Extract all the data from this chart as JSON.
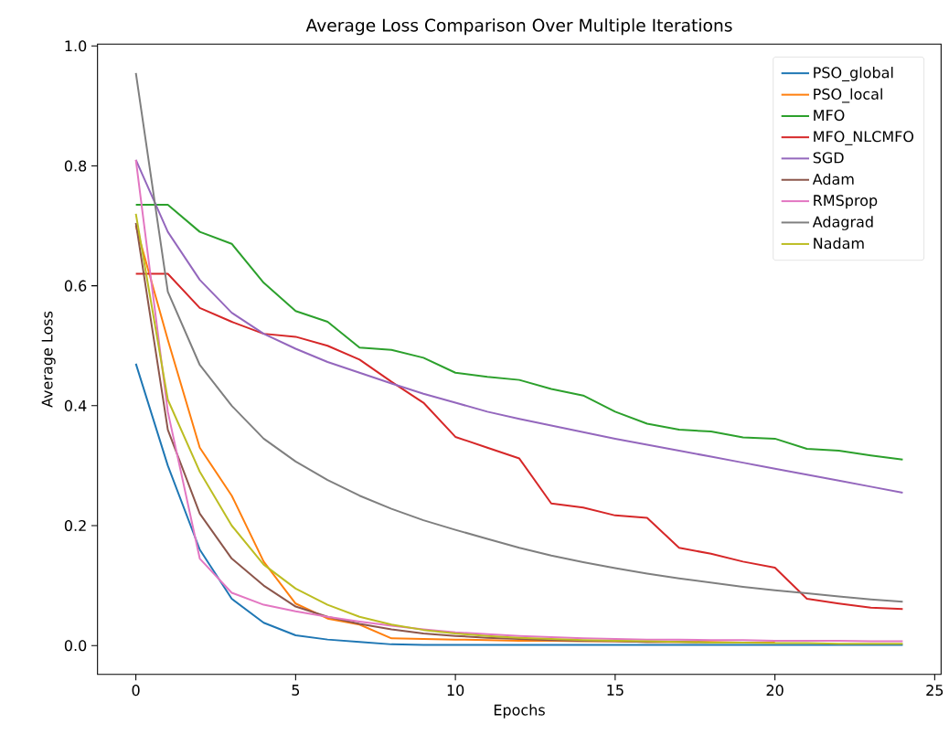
{
  "chart_data": {
    "type": "line",
    "title": "Average Loss Comparison Over Multiple Iterations",
    "xlabel": "Epochs",
    "ylabel": "Average Loss",
    "x": [
      0,
      1,
      2,
      3,
      4,
      5,
      6,
      7,
      8,
      9,
      10,
      11,
      12,
      13,
      14,
      15,
      16,
      17,
      18,
      19,
      20,
      21,
      22,
      23,
      24
    ],
    "xlim": [
      -1.2,
      25.2
    ],
    "ylim": [
      -0.048,
      1.003
    ],
    "xticks": [
      0,
      5,
      10,
      15,
      20,
      25
    ],
    "yticks": [
      {
        "value": 0,
        "label": "0.0"
      },
      0.2,
      0.4,
      0.6,
      0.8,
      {
        "value": 1,
        "label": "1.0"
      }
    ],
    "legend": "top right",
    "grid": false,
    "marker": "none",
    "line_style": "solid",
    "series": [
      {
        "name": "PSO_global",
        "color": "#1f77b4",
        "values": [
          0.47,
          0.3,
          0.16,
          0.078,
          0.038,
          0.017,
          0.01,
          0.006,
          0.002,
          0.001,
          0.001,
          0.001,
          0.001,
          0.001,
          0.001,
          0.001,
          0.001,
          0.001,
          0.001,
          0.001,
          0.001,
          0.001,
          0.001,
          0.001,
          0.001
        ]
      },
      {
        "name": "PSO_local",
        "color": "#ff7f0e",
        "values": [
          0.7,
          0.51,
          0.33,
          0.25,
          0.14,
          0.07,
          0.045,
          0.035,
          0.012,
          0.011,
          0.01,
          0.009,
          0.008,
          0.008,
          0.007,
          0.007,
          0.006,
          0.006,
          0.006,
          0.005,
          0.005,
          null,
          null,
          null,
          null
        ]
      },
      {
        "name": "MFO",
        "color": "#2ca02c",
        "values": [
          0.735,
          0.735,
          0.69,
          0.67,
          0.605,
          0.558,
          0.54,
          0.497,
          0.493,
          0.48,
          0.455,
          0.448,
          0.443,
          0.428,
          0.417,
          0.39,
          0.37,
          0.36,
          0.357,
          0.347,
          0.345,
          0.328,
          0.325,
          0.317,
          0.31
        ]
      },
      {
        "name": "MFO_NLCMFO",
        "color": "#d62728",
        "values": [
          0.62,
          0.62,
          0.563,
          0.54,
          0.52,
          0.515,
          0.5,
          0.477,
          0.44,
          0.405,
          0.348,
          0.33,
          0.312,
          0.237,
          0.23,
          0.217,
          0.213,
          0.163,
          0.153,
          0.14,
          0.13,
          0.078,
          0.07,
          0.063,
          0.061
        ]
      },
      {
        "name": "SGD",
        "color": "#9467bd",
        "values": [
          0.81,
          0.69,
          0.61,
          0.555,
          0.52,
          0.495,
          0.473,
          0.455,
          0.437,
          0.42,
          0.405,
          0.39,
          0.378,
          0.367,
          0.356,
          0.345,
          0.335,
          0.325,
          0.315,
          0.305,
          0.295,
          0.285,
          0.275,
          0.265,
          0.255
        ]
      },
      {
        "name": "Adam",
        "color": "#8c564b",
        "values": [
          0.705,
          0.36,
          0.22,
          0.145,
          0.1,
          0.065,
          0.048,
          0.036,
          0.027,
          0.02,
          0.016,
          0.013,
          0.011,
          0.009,
          0.008,
          0.007,
          0.006,
          0.006,
          0.005,
          null,
          null,
          null,
          null,
          null,
          null
        ]
      },
      {
        "name": "RMSprop",
        "color": "#e377c2",
        "values": [
          0.81,
          0.39,
          0.145,
          0.088,
          0.068,
          0.057,
          0.048,
          0.04,
          0.033,
          0.027,
          0.022,
          0.019,
          0.016,
          0.014,
          0.012,
          0.011,
          0.01,
          0.01,
          0.009,
          0.009,
          0.008,
          0.008,
          0.008,
          0.007,
          0.007
        ]
      },
      {
        "name": "Adagrad",
        "color": "#7f7f7f",
        "values": [
          0.955,
          0.59,
          0.468,
          0.4,
          0.345,
          0.307,
          0.276,
          0.25,
          0.228,
          0.209,
          0.193,
          0.178,
          0.163,
          0.15,
          0.139,
          0.129,
          0.12,
          0.112,
          0.105,
          0.098,
          0.092,
          0.087,
          0.082,
          0.077,
          0.073
        ]
      },
      {
        "name": "Nadam",
        "color": "#bcbd22",
        "values": [
          0.72,
          0.41,
          0.29,
          0.2,
          0.135,
          0.095,
          0.068,
          0.048,
          0.035,
          0.026,
          0.02,
          0.016,
          0.013,
          0.011,
          0.009,
          0.008,
          0.007,
          0.006,
          0.005,
          0.005,
          0.004,
          0.004,
          0.003,
          0.003,
          0.003
        ]
      }
    ]
  }
}
